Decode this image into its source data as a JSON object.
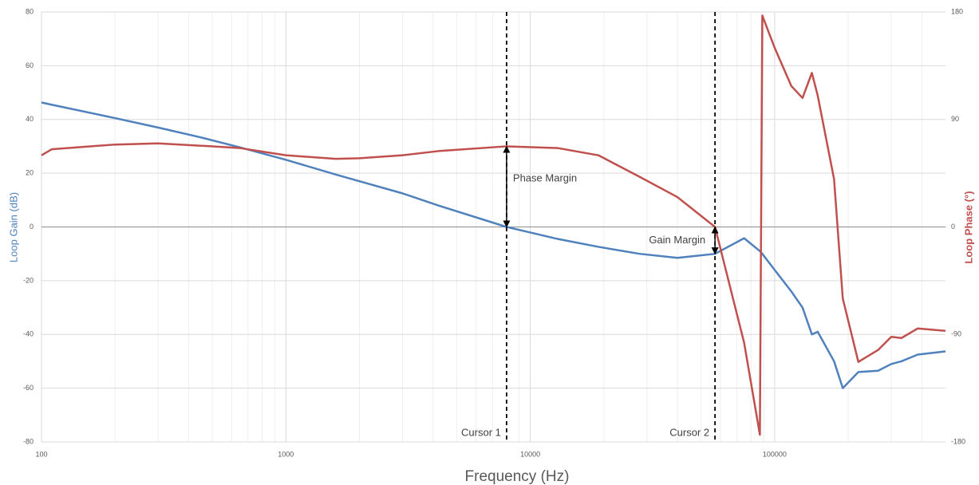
{
  "chart_data": {
    "type": "line",
    "x_label": "Frequency (Hz)",
    "y_label": "Loop Gain (dB)",
    "y2_label": "Loop Phase (°)",
    "x_scale": "log",
    "grid": true,
    "x": [
      100,
      110,
      200,
      300,
      450,
      650,
      1000,
      1600,
      2000,
      3000,
      4200,
      8000,
      13000,
      19000,
      28000,
      40000,
      57000,
      75000,
      87000,
      89000,
      100000,
      117000,
      130000,
      142000,
      150000,
      175000,
      190000,
      220000,
      265000,
      300000,
      330000,
      385000,
      500000
    ],
    "series": [
      {
        "name": "Loop Gain",
        "color": "#4f81bd",
        "axis": "y",
        "values": [
          46.3,
          45.5,
          40.5,
          37,
          33.3,
          29.6,
          25,
          19.5,
          17,
          12.5,
          8,
          0,
          -4.5,
          -7.4,
          -10,
          -11.5,
          -10,
          -4.2,
          -9,
          -10,
          -16,
          -24,
          -30,
          -40,
          -39,
          -50,
          -60,
          -54,
          -53.5,
          -51,
          -50,
          -47.5,
          -46.3
        ]
      },
      {
        "name": "Loop Phase",
        "color": "#c0504d",
        "axis": "y2",
        "values": [
          60,
          65,
          69,
          70,
          68,
          66,
          60,
          57,
          57.5,
          60,
          63.5,
          67.5,
          66,
          60,
          42,
          25,
          0,
          -97,
          -174,
          177,
          150,
          118,
          108,
          129,
          110,
          40,
          -60,
          -113,
          -103,
          -92,
          -93,
          -85,
          -87
        ]
      }
    ],
    "xlim": [
      100,
      500000
    ],
    "xticks": [
      100,
      1000,
      10000,
      100000
    ],
    "ylim": [
      -80,
      80
    ],
    "yticks": [
      -80,
      -60,
      -40,
      -20,
      0,
      20,
      40,
      60,
      80
    ],
    "y2lim": [
      -180,
      180
    ],
    "y2ticks": [
      -180,
      -90,
      0,
      90,
      180
    ],
    "cursors": [
      {
        "label": "Cursor 1",
        "x": 8000
      },
      {
        "label": "Cursor 2",
        "x": 57000
      }
    ],
    "annotations": [
      {
        "text": "Phase Margin",
        "x": 8000,
        "series": 1
      },
      {
        "text": "Gain Margin",
        "x": 57000,
        "series": 0
      }
    ]
  }
}
